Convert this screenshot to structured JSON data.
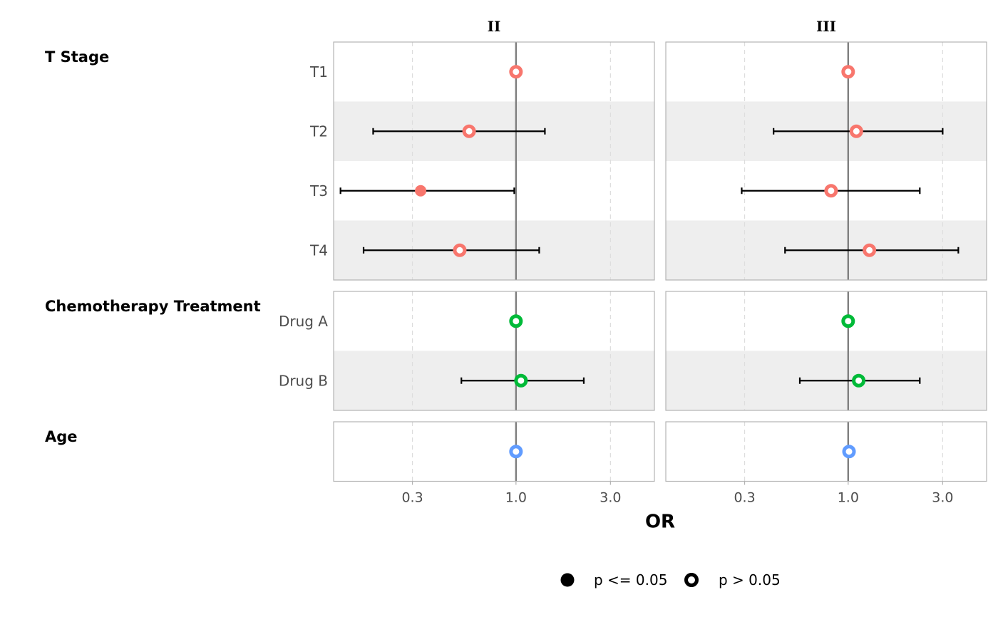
{
  "chart_data": {
    "type": "scatter",
    "subtype": "faceted forest plot (point estimates with confidence intervals)",
    "x_axis": {
      "label": "OR",
      "scale": "log",
      "ticks": [
        0.3,
        1.0,
        3.0
      ],
      "tick_labels": [
        "0.3",
        "1.0",
        "3.0"
      ],
      "range": [
        0.12,
        5.0
      ],
      "reference_line": 1.0
    },
    "facets": [
      "II",
      "III"
    ],
    "groups": [
      {
        "label": "T Stage",
        "color": "#F8766D",
        "rows": [
          {
            "label": "T1",
            "estimates": [
              {
                "facet": "II",
                "or": 1.0,
                "ci": null,
                "significant": false
              },
              {
                "facet": "III",
                "or": 1.0,
                "ci": null,
                "significant": false
              }
            ]
          },
          {
            "label": "T2",
            "estimates": [
              {
                "facet": "II",
                "or": 0.58,
                "ci": [
                  0.19,
                  1.4
                ],
                "significant": false
              },
              {
                "facet": "III",
                "or": 1.1,
                "ci": [
                  0.42,
                  3.0
                ],
                "significant": false
              }
            ]
          },
          {
            "label": "T3",
            "estimates": [
              {
                "facet": "II",
                "or": 0.33,
                "ci": [
                  0.13,
                  0.98
                ],
                "significant": true
              },
              {
                "facet": "III",
                "or": 0.82,
                "ci": [
                  0.29,
                  2.3
                ],
                "significant": false
              }
            ]
          },
          {
            "label": "T4",
            "estimates": [
              {
                "facet": "II",
                "or": 0.52,
                "ci": [
                  0.17,
                  1.31
                ],
                "significant": false
              },
              {
                "facet": "III",
                "or": 1.28,
                "ci": [
                  0.48,
                  3.6
                ],
                "significant": false
              }
            ]
          }
        ]
      },
      {
        "label": "Chemotherapy Treatment",
        "color": "#00BA38",
        "rows": [
          {
            "label": "Drug A",
            "estimates": [
              {
                "facet": "II",
                "or": 1.0,
                "ci": null,
                "significant": false
              },
              {
                "facet": "III",
                "or": 1.0,
                "ci": null,
                "significant": false
              }
            ]
          },
          {
            "label": "Drug B",
            "estimates": [
              {
                "facet": "II",
                "or": 1.06,
                "ci": [
                  0.53,
                  2.2
                ],
                "significant": false
              },
              {
                "facet": "III",
                "or": 1.13,
                "ci": [
                  0.57,
                  2.3
                ],
                "significant": false
              }
            ]
          }
        ]
      },
      {
        "label": "Age",
        "color": "#619CFF",
        "rows": [
          {
            "label": "",
            "estimates": [
              {
                "facet": "II",
                "or": 1.0,
                "ci": null,
                "significant": false
              },
              {
                "facet": "III",
                "or": 1.01,
                "ci": null,
                "significant": false
              }
            ]
          }
        ]
      }
    ],
    "legend": {
      "position": "bottom",
      "entries": [
        {
          "label": "p <= 0.05",
          "marker": "filled-circle"
        },
        {
          "label": "p > 0.05",
          "marker": "ring"
        }
      ]
    },
    "colors": {
      "panel_border": "#b3b3b3",
      "stripe": "#eeeeee",
      "grid": "#dddddd",
      "reference_line": "#808080"
    }
  }
}
